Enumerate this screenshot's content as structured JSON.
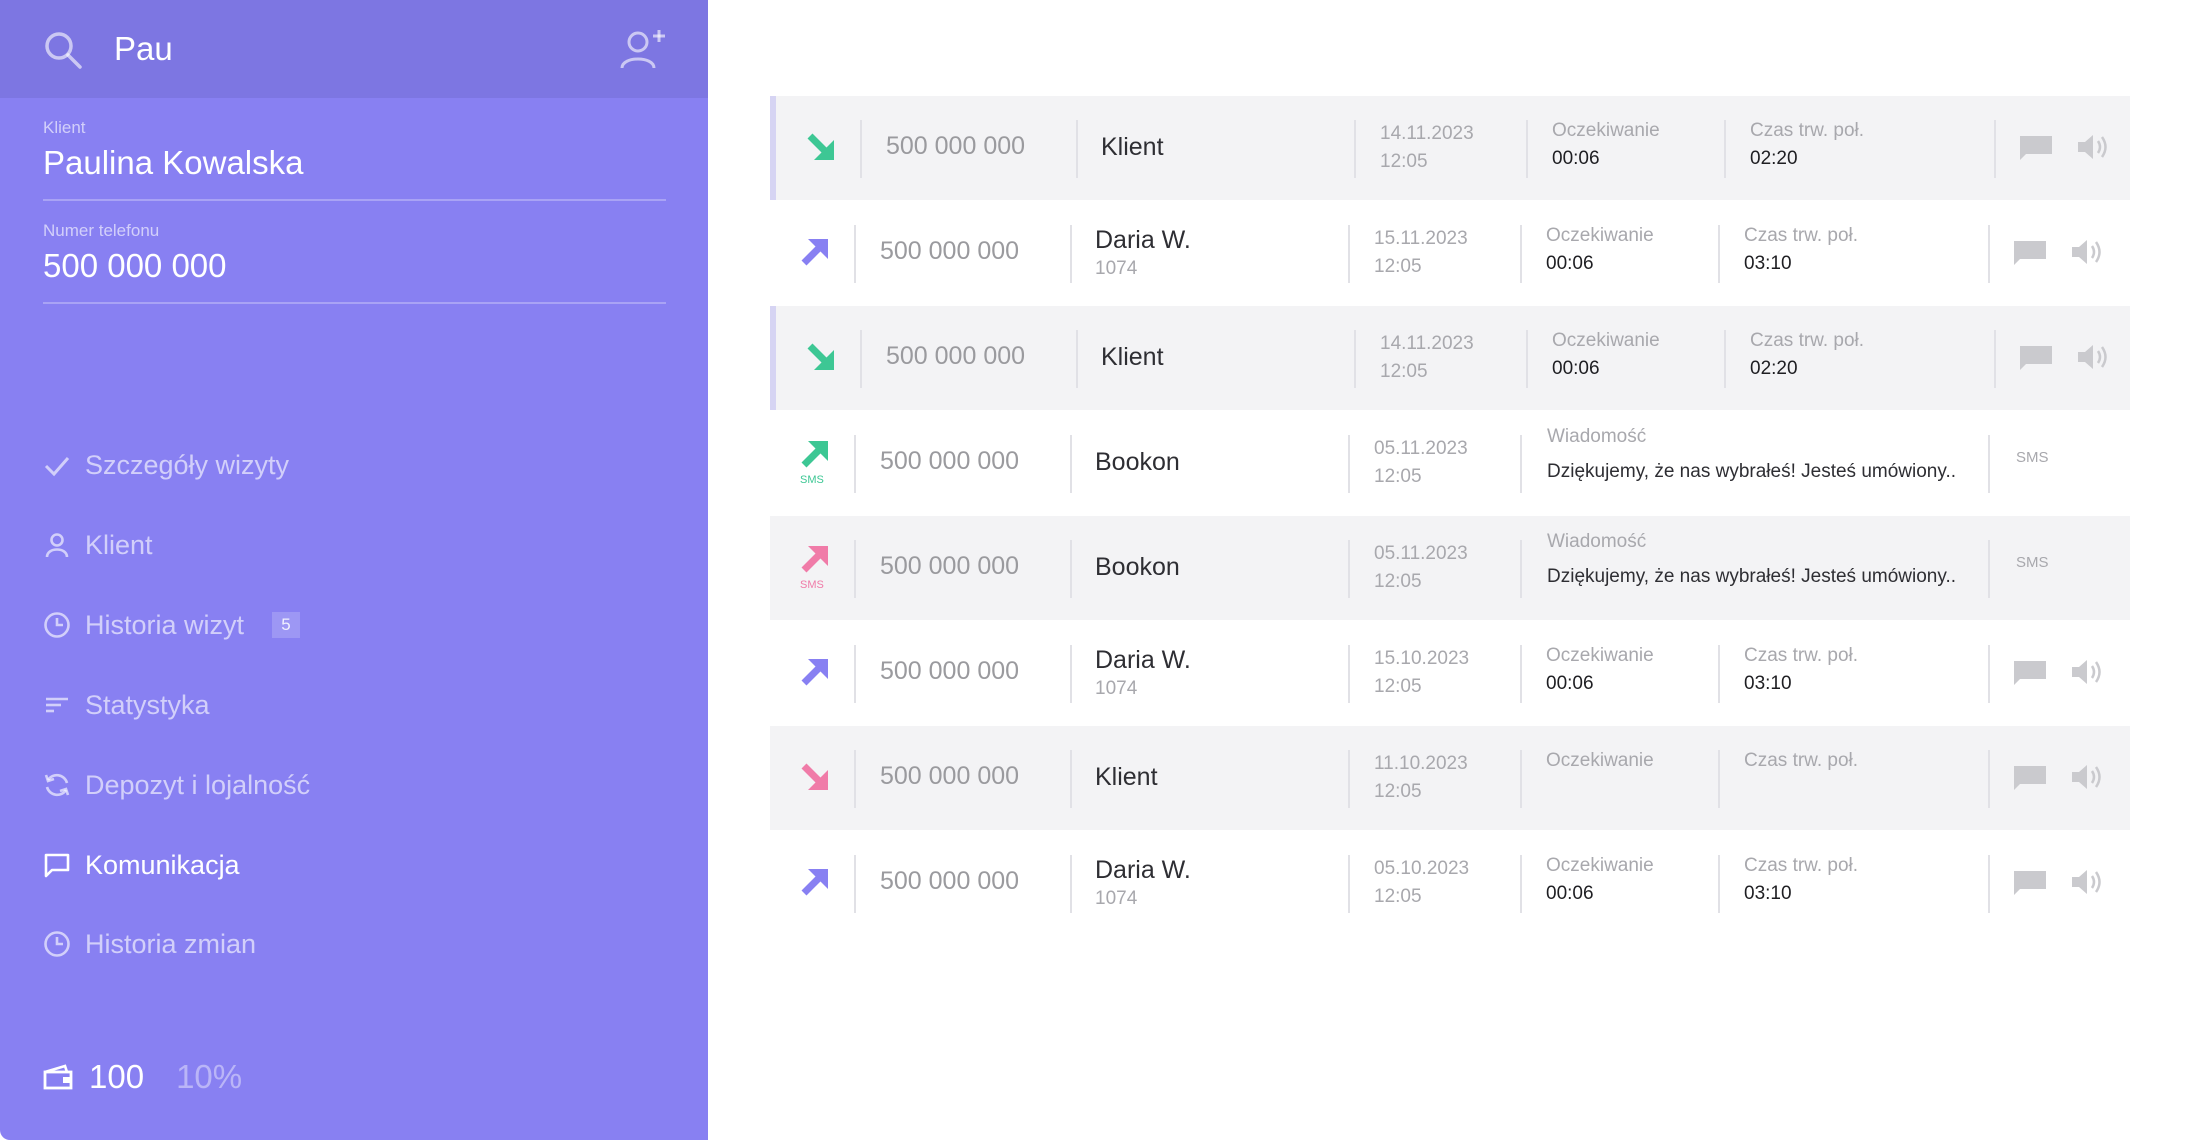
{
  "search": {
    "query": "Pau"
  },
  "client_panel": {
    "client_label": "Klient",
    "client_name": "Paulina Kowalska",
    "phone_label": "Numer telefonu",
    "phone_value": "500 000 000"
  },
  "nav": [
    {
      "label": "Szczegóły wizyty",
      "icon": "check-icon"
    },
    {
      "label": "Klient",
      "icon": "user-icon"
    },
    {
      "label": "Historia wizyt",
      "icon": "clock-icon",
      "badge": "5"
    },
    {
      "label": "Statystyka",
      "icon": "sort-icon"
    },
    {
      "label": "Depozyt i lojalność",
      "icon": "refresh-icon"
    },
    {
      "label": "Komunikacja",
      "icon": "chat-icon",
      "active": true
    },
    {
      "label": "Historia zmian",
      "icon": "clock-icon"
    }
  ],
  "wallet": {
    "amount": "100",
    "percent": "10%"
  },
  "colors": {
    "sidebar": "#8880F2",
    "search_bar": "#7D76E2",
    "incoming": "#3DC794",
    "outgoing": "#8880F2",
    "missed": "#F07BA8"
  },
  "rows": [
    {
      "direction": "incoming",
      "phone": "500 000 000",
      "name": "Klient",
      "date": "14.11.2023",
      "time": "12:05",
      "wait_label": "Oczekiwanie",
      "wait": "00:06",
      "dur_label": "Czas trw. poł.",
      "dur": "02:20"
    },
    {
      "direction": "outgoing",
      "phone": "500 000 000",
      "name": "Daria W.",
      "ext": "1074",
      "date": "15.11.2023",
      "time": "12:05",
      "wait_label": "Oczekiwanie",
      "wait": "00:06",
      "dur_label": "Czas trw. poł.",
      "dur": "03:10"
    },
    {
      "direction": "incoming",
      "phone": "500 000 000",
      "name": "Klient",
      "date": "14.11.2023",
      "time": "12:05",
      "wait_label": "Oczekiwanie",
      "wait": "00:06",
      "dur_label": "Czas trw. poł.",
      "dur": "02:20"
    },
    {
      "direction": "sms-sent",
      "sms_label": "SMS",
      "phone": "500 000 000",
      "name": "Bookon",
      "date": "05.11.2023",
      "time": "12:05",
      "msg_label": "Wiadomość",
      "msg": "Dziękujemy, że nas wybrałeś! Jesteś umówiony..",
      "type_label": "SMS"
    },
    {
      "direction": "sms-failed",
      "sms_label": "SMS",
      "phone": "500 000 000",
      "name": "Bookon",
      "date": "05.11.2023",
      "time": "12:05",
      "msg_label": "Wiadomość",
      "msg": "Dziękujemy, że nas wybrałeś! Jesteś umówiony..",
      "type_label": "SMS"
    },
    {
      "direction": "outgoing",
      "phone": "500 000 000",
      "name": "Daria W.",
      "ext": "1074",
      "date": "15.10.2023",
      "time": "12:05",
      "wait_label": "Oczekiwanie",
      "wait": "00:06",
      "dur_label": "Czas trw. poł.",
      "dur": "03:10"
    },
    {
      "direction": "missed",
      "phone": "500 000 000",
      "name": "Klient",
      "date": "11.10.2023",
      "time": "12:05",
      "wait_label": "Oczekiwanie",
      "wait": "",
      "dur_label": "Czas trw. poł.",
      "dur": ""
    },
    {
      "direction": "outgoing",
      "phone": "500 000 000",
      "name": "Daria W.",
      "ext": "1074",
      "date": "05.10.2023",
      "time": "12:05",
      "wait_label": "Oczekiwanie",
      "wait": "00:06",
      "dur_label": "Czas trw. poł.",
      "dur": "03:10"
    }
  ]
}
